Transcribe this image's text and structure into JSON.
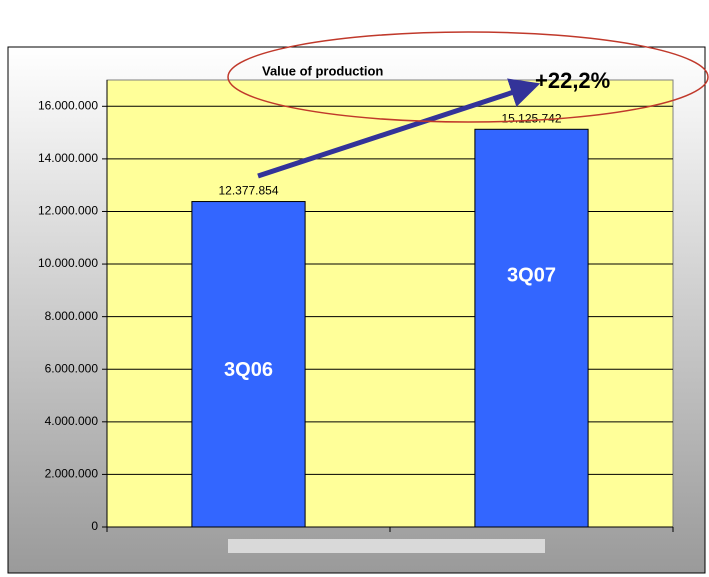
{
  "chart_data": {
    "type": "bar",
    "title": "Value of production",
    "annotation": "+22,2%",
    "categories": [
      "3Q06",
      "3Q07"
    ],
    "values": [
      12377854,
      15125742
    ],
    "value_labels": [
      "12.377.854",
      "15.125.742"
    ],
    "color": "#3366ff",
    "plot_color": "#ffff99",
    "ylim": [
      0,
      17000000
    ],
    "yticks": [
      0,
      {
        "value": 2000000,
        "label": "2.000.000"
      },
      {
        "value": 4000000,
        "label": "4.000.000"
      },
      {
        "value": 6000000,
        "label": "6.000.000"
      },
      {
        "value": 8000000,
        "label": "8.000.000"
      },
      {
        "value": 10000000,
        "label": "10.000.000"
      },
      {
        "value": 12000000,
        "label": "12.000.000"
      },
      {
        "value": 14000000,
        "label": "14.000.000"
      },
      {
        "value": 16000000,
        "label": "16.000.000"
      }
    ],
    "grid": true
  }
}
